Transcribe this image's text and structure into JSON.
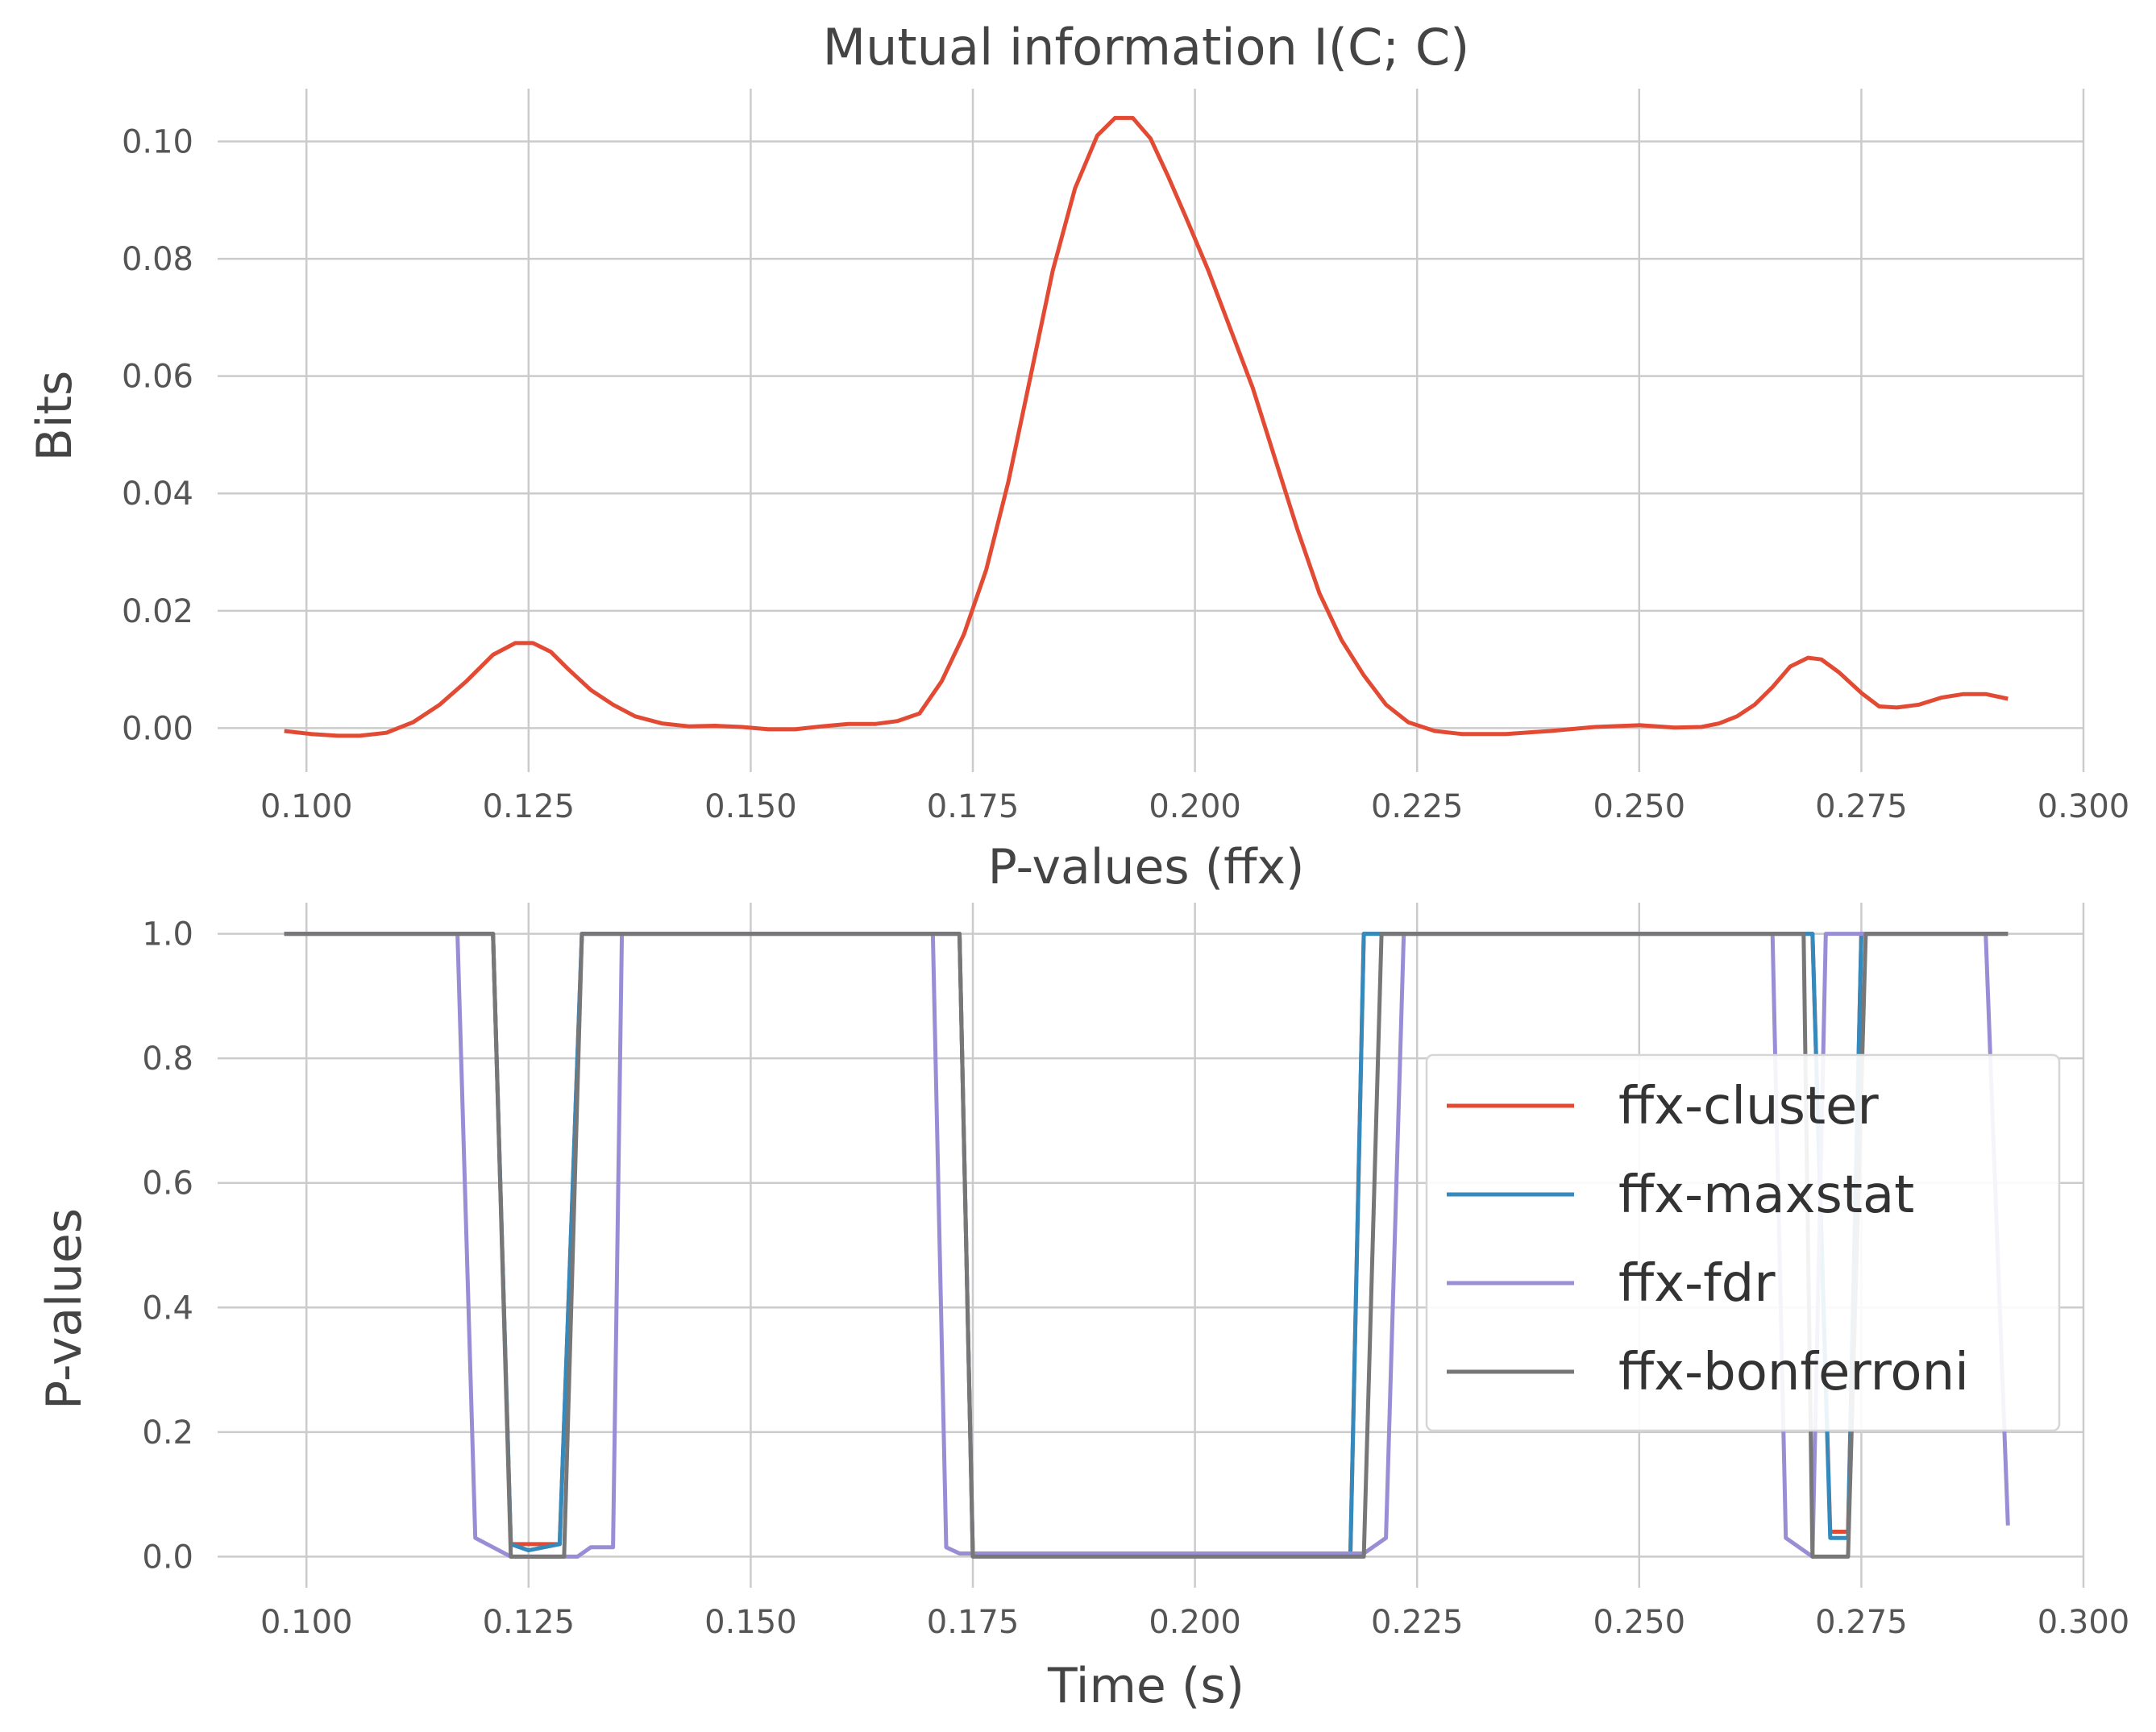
{
  "chart_data": [
    {
      "type": "line",
      "title": "Mutual information I(C; C)",
      "xlabel": "P-values (ffx)",
      "ylabel": "Bits",
      "xlim": [
        0.09,
        0.3
      ],
      "ylim": [
        -0.0075,
        0.109
      ],
      "x_ticks": [
        0.1,
        0.125,
        0.15,
        0.175,
        0.2,
        0.225,
        0.25,
        0.275,
        0.3
      ],
      "x_tick_labels": [
        "0.100",
        "0.125",
        "0.150",
        "0.175",
        "0.200",
        "0.225",
        "0.250",
        "0.275",
        "0.300"
      ],
      "y_ticks": [
        0.0,
        0.02,
        0.04,
        0.06,
        0.08,
        0.1
      ],
      "y_tick_labels": [
        "0.00",
        "0.02",
        "0.04",
        "0.06",
        "0.08",
        "0.10"
      ],
      "grid": true,
      "series": [
        {
          "color": "#E24A33",
          "x": [
            0.0975,
            0.1005,
            0.1035,
            0.106,
            0.109,
            0.112,
            0.115,
            0.118,
            0.121,
            0.1235,
            0.1255,
            0.1275,
            0.1295,
            0.132,
            0.1345,
            0.137,
            0.14,
            0.143,
            0.146,
            0.149,
            0.152,
            0.155,
            0.158,
            0.161,
            0.164,
            0.1665,
            0.169,
            0.1715,
            0.174,
            0.1765,
            0.179,
            0.1815,
            0.184,
            0.1865,
            0.189,
            0.191,
            0.193,
            0.195,
            0.197,
            0.199,
            0.2015,
            0.204,
            0.2065,
            0.209,
            0.2115,
            0.214,
            0.2165,
            0.219,
            0.2215,
            0.224,
            0.227,
            0.23,
            0.235,
            0.24,
            0.245,
            0.25,
            0.254,
            0.257,
            0.259,
            0.261,
            0.263,
            0.265,
            0.267,
            0.269,
            0.2705,
            0.2725,
            0.275,
            0.277,
            0.279,
            0.2815,
            0.284,
            0.2865,
            0.289,
            0.2915
          ],
          "y": [
            -0.0005,
            -0.001,
            -0.0013,
            -0.0013,
            -0.0008,
            0.001,
            0.004,
            0.008,
            0.0125,
            0.0145,
            0.0145,
            0.013,
            0.01,
            0.0065,
            0.004,
            0.002,
            0.0008,
            0.0003,
            0.0004,
            0.0002,
            -0.0002,
            -0.0002,
            0.0003,
            0.0007,
            0.0007,
            0.0012,
            0.0025,
            0.008,
            0.016,
            0.027,
            0.042,
            0.06,
            0.078,
            0.092,
            0.101,
            0.104,
            0.104,
            0.1005,
            0.094,
            0.087,
            0.078,
            0.068,
            0.058,
            0.046,
            0.034,
            0.023,
            0.015,
            0.009,
            0.004,
            0.001,
            -0.0005,
            -0.001,
            -0.001,
            -0.0005,
            0.0002,
            0.0005,
            0.0001,
            0.0002,
            0.0008,
            0.002,
            0.004,
            0.007,
            0.0105,
            0.012,
            0.0117,
            0.0095,
            0.006,
            0.0037,
            0.0035,
            0.004,
            0.0052,
            0.0058,
            0.0058,
            0.005
          ]
        }
      ]
    },
    {
      "type": "line",
      "title": "P-values (ffx)",
      "xlabel": "Time (s)",
      "ylabel": "P-values",
      "xlim": [
        0.09,
        0.3
      ],
      "ylim": [
        -0.05,
        1.05
      ],
      "x_ticks": [
        0.1,
        0.125,
        0.15,
        0.175,
        0.2,
        0.225,
        0.25,
        0.275,
        0.3
      ],
      "x_tick_labels": [
        "0.100",
        "0.125",
        "0.150",
        "0.175",
        "0.200",
        "0.225",
        "0.250",
        "0.275",
        "0.300"
      ],
      "y_ticks": [
        0.0,
        0.2,
        0.4,
        0.6,
        0.8,
        1.0
      ],
      "y_tick_labels": [
        "0.0",
        "0.2",
        "0.4",
        "0.6",
        "0.8",
        "1.0"
      ],
      "grid": true,
      "legend_position": "center-right",
      "series": [
        {
          "name": "ffx-cluster",
          "color": "#E24A33",
          "x": [
            0.0975,
            0.121,
            0.123,
            0.1285,
            0.131,
            0.1735,
            0.175,
            0.2175,
            0.219,
            0.2695,
            0.2715,
            0.2735,
            0.275,
            0.2915
          ],
          "y": [
            1.0,
            1.0,
            0.02,
            0.02,
            1.0,
            1.0,
            0.005,
            0.005,
            1.0,
            1.0,
            0.04,
            0.04,
            1.0,
            1.0
          ]
        },
        {
          "name": "ffx-maxstat",
          "color": "#348ABD",
          "x": [
            0.0975,
            0.121,
            0.123,
            0.125,
            0.1285,
            0.131,
            0.1735,
            0.175,
            0.2175,
            0.219,
            0.2695,
            0.2715,
            0.2735,
            0.275,
            0.2915
          ],
          "y": [
            1.0,
            1.0,
            0.02,
            0.01,
            0.02,
            1.0,
            1.0,
            0.005,
            0.005,
            1.0,
            1.0,
            0.03,
            0.03,
            1.0,
            1.0
          ]
        },
        {
          "name": "ffx-fdr",
          "color": "#988ED5",
          "x": [
            0.0975,
            0.117,
            0.119,
            0.123,
            0.1305,
            0.132,
            0.1345,
            0.1355,
            0.1705,
            0.172,
            0.1735,
            0.219,
            0.2215,
            0.2235,
            0.265,
            0.2665,
            0.2695,
            0.271,
            0.289,
            0.2915
          ],
          "y": [
            1.0,
            1.0,
            0.03,
            0.0,
            0.0,
            0.015,
            0.015,
            1.0,
            1.0,
            0.015,
            0.005,
            0.005,
            0.03,
            1.0,
            1.0,
            0.03,
            0.0,
            1.0,
            1.0,
            0.05
          ]
        },
        {
          "name": "ffx-bonferroni",
          "color": "#777777",
          "x": [
            0.0975,
            0.121,
            0.123,
            0.129,
            0.131,
            0.1735,
            0.175,
            0.219,
            0.221,
            0.2685,
            0.2695,
            0.2735,
            0.2755,
            0.2915
          ],
          "y": [
            1.0,
            1.0,
            0.0,
            0.0,
            1.0,
            1.0,
            0.0,
            0.0,
            1.0,
            1.0,
            0.0,
            0.0,
            1.0,
            1.0
          ]
        }
      ]
    }
  ]
}
